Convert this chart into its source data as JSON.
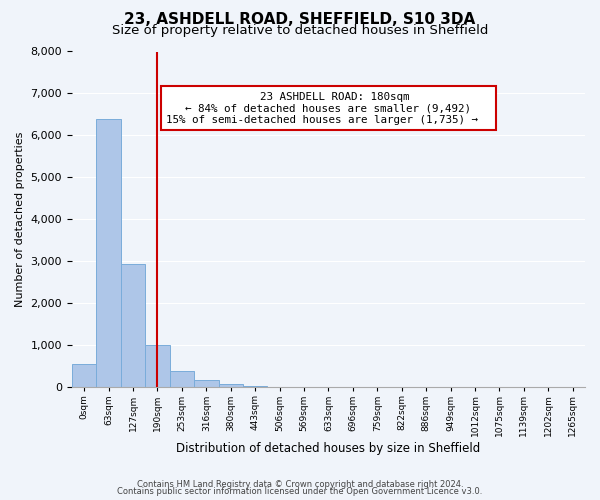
{
  "title": "23, ASHDELL ROAD, SHEFFIELD, S10 3DA",
  "subtitle": "Size of property relative to detached houses in Sheffield",
  "xlabel": "Distribution of detached houses by size in Sheffield",
  "ylabel": "Number of detached properties",
  "bar_values": [
    550,
    6400,
    2950,
    1000,
    380,
    185,
    90,
    40,
    0,
    0,
    0,
    0,
    0,
    0,
    0,
    0,
    0,
    0,
    0,
    0,
    0
  ],
  "bar_labels": [
    "0sqm",
    "63sqm",
    "127sqm",
    "190sqm",
    "253sqm",
    "316sqm",
    "380sqm",
    "443sqm",
    "506sqm",
    "569sqm",
    "633sqm",
    "696sqm",
    "759sqm",
    "822sqm",
    "886sqm",
    "949sqm",
    "1012sqm",
    "1075sqm",
    "1139sqm",
    "1202sqm",
    "1265sqm"
  ],
  "bar_color": "#aec6e8",
  "bar_edgecolor": "#7aacda",
  "vline_x": 3,
  "vline_color": "#cc0000",
  "ylim": [
    0,
    8000
  ],
  "yticks": [
    0,
    1000,
    2000,
    3000,
    4000,
    5000,
    6000,
    7000,
    8000
  ],
  "annotation_title": "23 ASHDELL ROAD: 180sqm",
  "annotation_line1": "← 84% of detached houses are smaller (9,492)",
  "annotation_line2": "15% of semi-detached houses are larger (1,735) →",
  "footer1": "Contains HM Land Registry data © Crown copyright and database right 2024.",
  "footer2": "Contains public sector information licensed under the Open Government Licence v3.0.",
  "bg_color": "#f0f4fa",
  "title_fontsize": 11,
  "subtitle_fontsize": 9.5
}
